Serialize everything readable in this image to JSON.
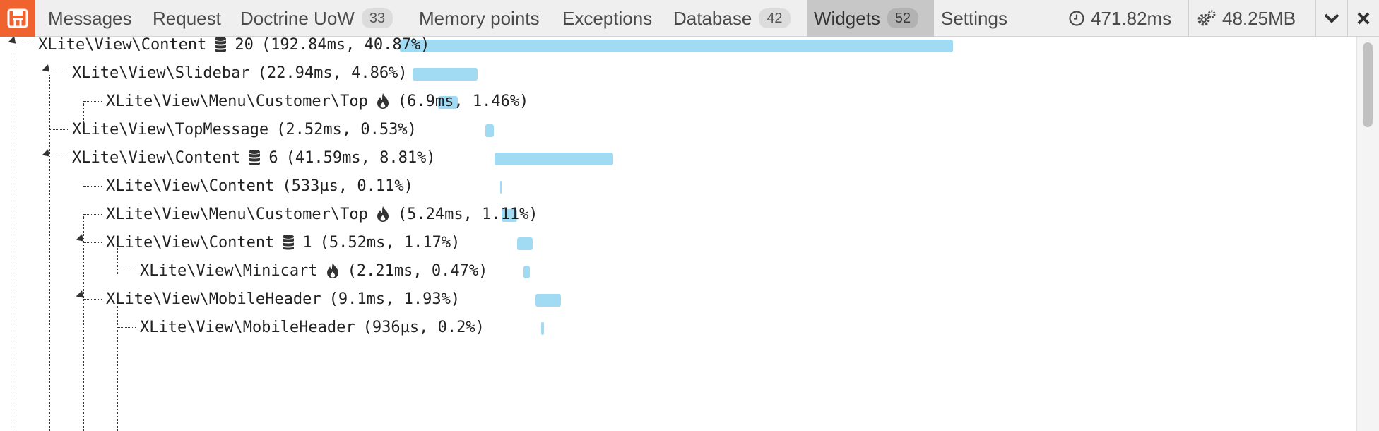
{
  "toolbar": {
    "tabs": [
      {
        "label": "Messages"
      },
      {
        "label": "Request"
      },
      {
        "label": "Doctrine UoW",
        "badge": "33"
      },
      {
        "label": "Memory points"
      },
      {
        "label": "Exceptions"
      },
      {
        "label": "Database",
        "badge": "42"
      },
      {
        "label": "Widgets",
        "badge": "52",
        "active": true
      },
      {
        "label": "Settings"
      }
    ],
    "time": "471.82ms",
    "memory": "48.25MB",
    "icons": {
      "time": "clock-icon",
      "memory": "gears-icon",
      "minimize": "chevron-down-icon",
      "close": "close-icon",
      "logo": "debugbar-logo-icon"
    }
  },
  "widgets": {
    "rows": [
      {
        "name": "XLite\\View\\Content",
        "icon": "database-icon",
        "count": "20",
        "stats": "(192.84ms, 40.87%)",
        "percent": 40.87
      },
      {
        "name": "XLite\\View\\Slidebar",
        "stats": "(22.94ms, 4.86%)",
        "percent": 4.86
      },
      {
        "name": "XLite\\View\\Menu\\Customer\\Top",
        "icon": "fire-icon",
        "stats": "(6.9ms, 1.46%)",
        "percent": 1.46
      },
      {
        "name": "XLite\\View\\TopMessage",
        "stats": "(2.52ms, 0.53%)",
        "percent": 0.53
      },
      {
        "name": "XLite\\View\\Content",
        "icon": "database-icon",
        "count": "6",
        "stats": "(41.59ms, 8.81%)",
        "percent": 8.81
      },
      {
        "name": "XLite\\View\\Content",
        "stats": "(533µs, 0.11%)",
        "percent": 0.11
      },
      {
        "name": "XLite\\View\\Menu\\Customer\\Top",
        "icon": "fire-icon",
        "stats": "(5.24ms, 1.11%)",
        "percent": 1.11
      },
      {
        "name": "XLite\\View\\Content",
        "icon": "database-icon",
        "count": "1",
        "stats": "(5.52ms, 1.17%)",
        "percent": 1.17
      },
      {
        "name": "XLite\\View\\Minicart",
        "icon": "fire-icon",
        "stats": "(2.21ms, 0.47%)",
        "percent": 0.47
      },
      {
        "name": "XLite\\View\\MobileHeader",
        "stats": "(9.1ms, 1.93%)",
        "percent": 1.93
      },
      {
        "name": "XLite\\View\\MobileHeader",
        "stats": "(936µs, 0.2%)",
        "percent": 0.2
      }
    ]
  },
  "colors": {
    "brand": "#f0622e",
    "bar": "#a1dbf3",
    "active_tab": "#c7c7c7"
  }
}
